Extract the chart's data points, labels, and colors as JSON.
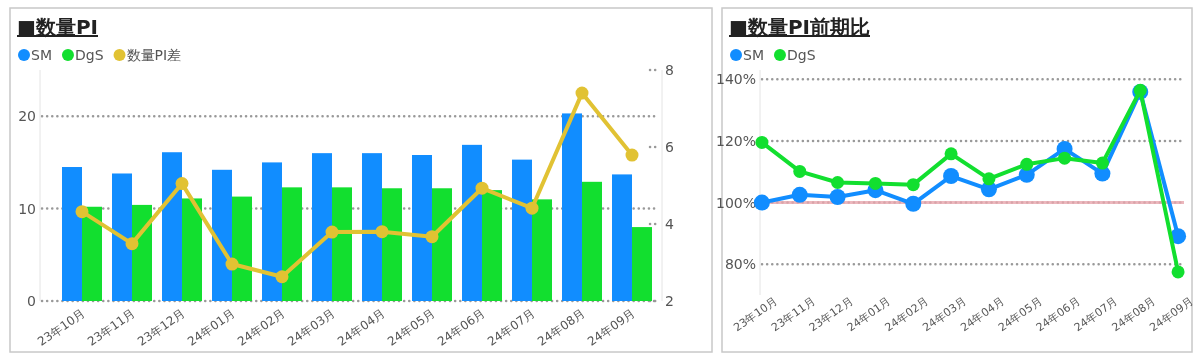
{
  "chart_data": [
    {
      "type": "bar",
      "title": "■数量PI",
      "categories": [
        "23年10月",
        "23年11月",
        "23年12月",
        "24年01月",
        "24年02月",
        "24年03月",
        "24年04月",
        "24年05月",
        "24年06月",
        "24年07月",
        "24年08月",
        "24年09月"
      ],
      "series": [
        {
          "name": "SM",
          "color": "#118dff",
          "values": [
            14.5,
            13.8,
            16.1,
            14.2,
            15.0,
            16.0,
            16.0,
            15.8,
            16.9,
            15.3,
            20.3,
            13.7
          ]
        },
        {
          "name": "DgS",
          "color": "#12df2f",
          "values": [
            10.2,
            10.4,
            11.1,
            11.3,
            12.3,
            12.3,
            12.2,
            12.2,
            12.0,
            11.0,
            12.9,
            8.0
          ]
        },
        {
          "name": "数量PI差",
          "type": "line",
          "axis": "y2",
          "color": "#e1c233",
          "values": [
            4.32,
            3.49,
            5.05,
            2.96,
            2.63,
            3.79,
            3.8,
            3.67,
            4.93,
            4.41,
            7.4,
            5.79
          ]
        }
      ],
      "ylim": [
        0,
        25
      ],
      "yticks": [
        0,
        10,
        20
      ],
      "y2lim": [
        2,
        8
      ],
      "y2ticks": [
        2,
        4,
        6,
        8
      ],
      "grid": "y",
      "legend": "top left",
      "marker": "circle"
    },
    {
      "type": "line",
      "title": "■数量PI前期比",
      "categories": [
        "23年10月",
        "23年11月",
        "23年12月",
        "24年01月",
        "24年02月",
        "24年03月",
        "24年04月",
        "24年05月",
        "24年06月",
        "24年07月",
        "24年08月",
        "24年09月"
      ],
      "series": [
        {
          "name": "SM",
          "color": "#118dff",
          "values": [
            100,
            102.5,
            101.8,
            104,
            99.6,
            108.6,
            104.3,
            109,
            117.4,
            109.4,
            135.9,
            89.1
          ]
        },
        {
          "name": "DgS",
          "color": "#12df2f",
          "values": [
            119.5,
            110.1,
            106.5,
            106.2,
            105.8,
            115.8,
            107.7,
            112.4,
            114.4,
            112.8,
            136.4,
            77.5
          ]
        }
      ],
      "ylim": [
        70,
        143
      ],
      "yticks": [
        {
          "value": 80,
          "label": "80%"
        },
        {
          "value": 100,
          "label": "100%"
        },
        {
          "value": 120,
          "label": "120%"
        },
        {
          "value": 140,
          "label": "140%"
        }
      ],
      "ref_lines": [
        {
          "axis": "y",
          "value": 100,
          "color": "#e8a6ad"
        }
      ],
      "grid": "y",
      "legend": "top left",
      "marker": "circle"
    }
  ]
}
